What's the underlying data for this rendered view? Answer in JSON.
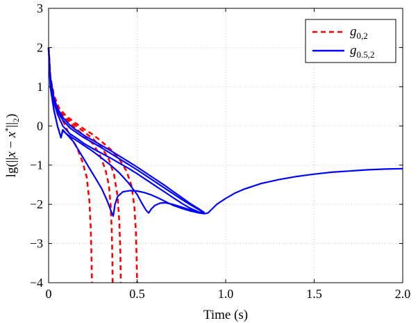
{
  "chart_data": {
    "type": "line",
    "title": "",
    "xlabel": "Time (s)",
    "ylabel_parts": {
      "prefix": "lg(||",
      "x": "x",
      "minus": " − ",
      "xstar": "x",
      "star": "*",
      "suffix": "||",
      "sub": "2",
      "close": ")"
    },
    "xlim": [
      0,
      2.0
    ],
    "ylim": [
      -4,
      3
    ],
    "x_ticks": [
      0,
      0.5,
      1.0,
      1.5,
      2.0
    ],
    "x_tick_labels": [
      "0",
      "0.5",
      "1.0",
      "1.5",
      "2.0"
    ],
    "y_ticks": [
      3,
      2,
      1,
      0,
      -1,
      -2,
      -3,
      -4
    ],
    "y_tick_labels": [
      "3",
      "2",
      "1",
      "0",
      "−1",
      "−2",
      "−3",
      "−4"
    ],
    "grid": true,
    "legend_position": "top-right",
    "legend": [
      {
        "symbol": "g",
        "subscript": "0,2",
        "color": "#ff0000",
        "style": "dashed"
      },
      {
        "symbol": "g",
        "subscript": "0.5,2",
        "color": "#0000ff",
        "style": "solid"
      }
    ],
    "series": [
      {
        "group": "g0,2",
        "color": "#ff0000",
        "style": "dashed",
        "x": [
          0,
          0.01,
          0.03,
          0.06,
          0.09,
          0.12,
          0.16,
          0.19,
          0.215,
          0.23,
          0.238,
          0.242,
          0.245
        ],
        "y": [
          2.0,
          1.2,
          0.7,
          0.3,
          0.05,
          -0.25,
          -0.55,
          -0.9,
          -1.3,
          -1.9,
          -2.6,
          -3.3,
          -4.0
        ]
      },
      {
        "group": "g0,2",
        "color": "#ff0000",
        "style": "dashed",
        "x": [
          0,
          0.01,
          0.03,
          0.06,
          0.1,
          0.15,
          0.2,
          0.25,
          0.29,
          0.32,
          0.34,
          0.35,
          0.356,
          0.36,
          0.362
        ],
        "y": [
          2.0,
          1.2,
          0.7,
          0.35,
          0.15,
          -0.05,
          -0.25,
          -0.45,
          -0.75,
          -1.1,
          -1.5,
          -2.0,
          -2.6,
          -3.3,
          -4.0
        ]
      },
      {
        "group": "g0,2",
        "color": "#ff0000",
        "style": "dashed",
        "x": [
          0,
          0.01,
          0.03,
          0.06,
          0.1,
          0.15,
          0.2,
          0.25,
          0.3,
          0.34,
          0.37,
          0.39,
          0.4,
          0.405,
          0.408
        ],
        "y": [
          2.0,
          1.25,
          0.75,
          0.4,
          0.2,
          0.02,
          -0.15,
          -0.33,
          -0.55,
          -0.85,
          -1.25,
          -1.8,
          -2.5,
          -3.2,
          -4.0
        ]
      },
      {
        "group": "g0,2",
        "color": "#ff0000",
        "style": "dashed",
        "x": [
          0,
          0.01,
          0.03,
          0.06,
          0.1,
          0.15,
          0.2,
          0.25,
          0.3,
          0.35,
          0.4,
          0.44,
          0.47,
          0.485,
          0.493,
          0.497,
          0.5
        ],
        "y": [
          2.0,
          1.25,
          0.78,
          0.45,
          0.25,
          0.08,
          -0.08,
          -0.22,
          -0.4,
          -0.6,
          -0.85,
          -1.15,
          -1.55,
          -2.1,
          -2.7,
          -3.3,
          -4.0
        ]
      },
      {
        "group": "g0.5,2",
        "color": "#0000ff",
        "style": "solid",
        "x": [
          0,
          0.01,
          0.03,
          0.05,
          0.07,
          0.08,
          0.1,
          0.14,
          0.18,
          0.22,
          0.26,
          0.3,
          0.33,
          0.355,
          0.365,
          0.375,
          0.39,
          0.42,
          0.46,
          0.5,
          0.54,
          0.58,
          0.62,
          0.66,
          0.7,
          0.75,
          0.8,
          0.85,
          0.88,
          0.9,
          0.95,
          1.0,
          1.05,
          1.1,
          1.2,
          1.3,
          1.4,
          1.5,
          1.6,
          1.7,
          1.8,
          1.9,
          2.0
        ],
        "y": [
          2.0,
          1.0,
          0.4,
          0.0,
          -0.3,
          -0.1,
          -0.2,
          -0.4,
          -0.7,
          -1.0,
          -1.3,
          -1.6,
          -1.9,
          -2.2,
          -2.3,
          -2.0,
          -1.8,
          -1.68,
          -1.65,
          -1.66,
          -1.7,
          -1.76,
          -1.84,
          -1.93,
          -2.02,
          -2.1,
          -2.17,
          -2.22,
          -2.24,
          -2.22,
          -2.0,
          -1.85,
          -1.72,
          -1.62,
          -1.47,
          -1.37,
          -1.29,
          -1.23,
          -1.18,
          -1.15,
          -1.12,
          -1.1,
          -1.09
        ]
      },
      {
        "group": "g0.5,2",
        "color": "#0000ff",
        "style": "solid",
        "x": [
          0,
          0.01,
          0.03,
          0.05,
          0.07,
          0.08,
          0.1,
          0.15,
          0.2,
          0.25,
          0.3,
          0.35,
          0.4,
          0.45,
          0.5,
          0.53,
          0.55,
          0.565,
          0.58,
          0.6,
          0.63,
          0.66,
          0.7,
          0.75,
          0.8,
          0.85,
          0.88
        ],
        "y": [
          2.0,
          1.0,
          0.4,
          0.0,
          -0.3,
          -0.12,
          -0.2,
          -0.35,
          -0.5,
          -0.65,
          -0.82,
          -1.0,
          -1.2,
          -1.45,
          -1.75,
          -2.0,
          -2.15,
          -2.22,
          -2.12,
          -2.03,
          -1.97,
          -1.96,
          -2.0,
          -2.07,
          -2.14,
          -2.2,
          -2.23
        ]
      },
      {
        "group": "g0.5,2",
        "color": "#0000ff",
        "style": "solid",
        "x": [
          0,
          0.01,
          0.03,
          0.05,
          0.08,
          0.12,
          0.16,
          0.2,
          0.25,
          0.3,
          0.35,
          0.4,
          0.45,
          0.5,
          0.55,
          0.6,
          0.65,
          0.7,
          0.75,
          0.8,
          0.85,
          0.88
        ],
        "y": [
          2.0,
          1.15,
          0.6,
          0.3,
          0.0,
          -0.2,
          -0.32,
          -0.45,
          -0.58,
          -0.7,
          -0.82,
          -0.95,
          -1.08,
          -1.22,
          -1.37,
          -1.52,
          -1.67,
          -1.82,
          -1.97,
          -2.1,
          -2.2,
          -2.23
        ]
      },
      {
        "group": "g0.5,2",
        "color": "#0000ff",
        "style": "solid",
        "x": [
          0,
          0.01,
          0.03,
          0.05,
          0.08,
          0.12,
          0.16,
          0.2,
          0.25,
          0.3,
          0.35,
          0.4,
          0.45,
          0.5,
          0.55,
          0.6,
          0.65,
          0.7,
          0.75,
          0.8,
          0.85,
          0.88
        ],
        "y": [
          2.0,
          1.2,
          0.65,
          0.38,
          0.15,
          -0.05,
          -0.18,
          -0.3,
          -0.43,
          -0.56,
          -0.7,
          -0.84,
          -0.98,
          -1.12,
          -1.27,
          -1.42,
          -1.57,
          -1.72,
          -1.87,
          -2.01,
          -2.14,
          -2.22
        ]
      },
      {
        "group": "g0.5,2",
        "color": "#0000ff",
        "style": "solid",
        "x": [
          0,
          0.01,
          0.03,
          0.05,
          0.08,
          0.12,
          0.16,
          0.2,
          0.25,
          0.3,
          0.35,
          0.4,
          0.45,
          0.5,
          0.55,
          0.6,
          0.65,
          0.7,
          0.75,
          0.8,
          0.85,
          0.88
        ],
        "y": [
          2.0,
          1.25,
          0.72,
          0.45,
          0.22,
          0.02,
          -0.12,
          -0.24,
          -0.37,
          -0.5,
          -0.63,
          -0.77,
          -0.91,
          -1.05,
          -1.2,
          -1.35,
          -1.5,
          -1.66,
          -1.82,
          -1.98,
          -2.12,
          -2.21
        ]
      }
    ]
  }
}
